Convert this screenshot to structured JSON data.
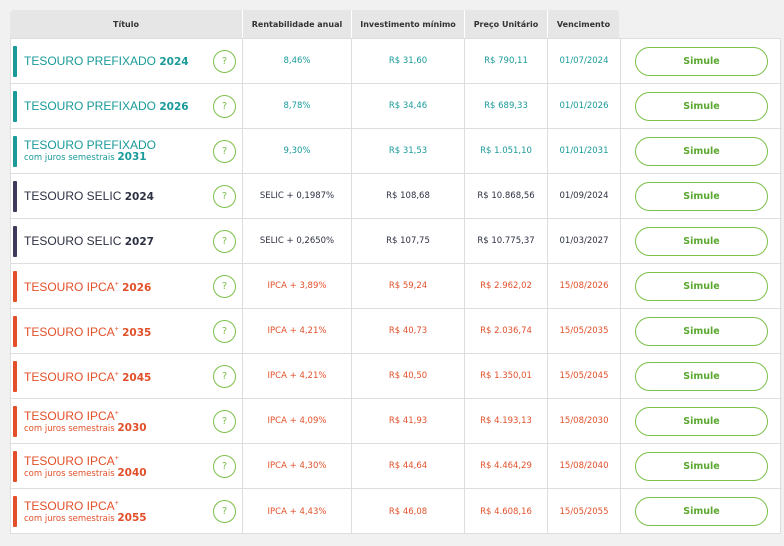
{
  "header": {
    "titulo": "Título",
    "rentabilidade": "Rentabilidade anual",
    "investimento": "Investimento mínimo",
    "preco": "Preço Unitário",
    "vencimento": "Vencimento"
  },
  "colors": {
    "prefixado": "#1a9a9a",
    "selic": "#3d3a5c",
    "ipca": "#e2502a",
    "button": "#7cc04a"
  },
  "help_symbol": "?",
  "rows": [
    {
      "name": "TESOURO PREFIXADO",
      "sub": "",
      "year": "2024",
      "group": "prefixado",
      "rent": "8,46%",
      "inv": "R$ 31,60",
      "price": "R$ 790,11",
      "venc": "01/07/2024",
      "action": "Simule"
    },
    {
      "name": "TESOURO PREFIXADO",
      "sub": "",
      "year": "2026",
      "group": "prefixado",
      "rent": "8,78%",
      "inv": "R$ 34,46",
      "price": "R$ 689,33",
      "venc": "01/01/2026",
      "action": "Simule"
    },
    {
      "name": "TESOURO PREFIXADO",
      "sub": "com juros semestrais",
      "year": "2031",
      "group": "prefixado",
      "rent": "9,30%",
      "inv": "R$ 31,53",
      "price": "R$ 1.051,10",
      "venc": "01/01/2031",
      "action": "Simule"
    },
    {
      "name": "TESOURO SELIC",
      "sub": "",
      "year": "2024",
      "group": "selic",
      "rent": "SELIC + 0,1987%",
      "inv": "R$ 108,68",
      "price": "R$ 10.868,56",
      "venc": "01/09/2024",
      "action": "Simule"
    },
    {
      "name": "TESOURO SELIC",
      "sub": "",
      "year": "2027",
      "group": "selic",
      "rent": "SELIC + 0,2650%",
      "inv": "R$ 107,75",
      "price": "R$ 10.775,37",
      "venc": "01/03/2027",
      "action": "Simule"
    },
    {
      "name": "TESOURO IPCA",
      "sub": "",
      "year": "2026",
      "group": "ipca",
      "rent": "IPCA + 3,89%",
      "inv": "R$ 59,24",
      "price": "R$ 2.962,02",
      "venc": "15/08/2026",
      "action": "Simule"
    },
    {
      "name": "TESOURO IPCA",
      "sub": "",
      "year": "2035",
      "group": "ipca",
      "rent": "IPCA + 4,21%",
      "inv": "R$ 40,73",
      "price": "R$ 2.036,74",
      "venc": "15/05/2035",
      "action": "Simule"
    },
    {
      "name": "TESOURO IPCA",
      "sub": "",
      "year": "2045",
      "group": "ipca",
      "rent": "IPCA + 4,21%",
      "inv": "R$ 40,50",
      "price": "R$ 1.350,01",
      "venc": "15/05/2045",
      "action": "Simule"
    },
    {
      "name": "TESOURO IPCA",
      "sub": "com juros semestrais",
      "year": "2030",
      "group": "ipca",
      "rent": "IPCA + 4,09%",
      "inv": "R$ 41,93",
      "price": "R$ 4.193,13",
      "venc": "15/08/2030",
      "action": "Simule"
    },
    {
      "name": "TESOURO IPCA",
      "sub": "com juros semestrais",
      "year": "2040",
      "group": "ipca",
      "rent": "IPCA + 4,30%",
      "inv": "R$ 44,64",
      "price": "R$ 4.464,29",
      "venc": "15/08/2040",
      "action": "Simule"
    },
    {
      "name": "TESOURO IPCA",
      "sub": "com juros semestrais",
      "year": "2055",
      "group": "ipca",
      "rent": "IPCA + 4,43%",
      "inv": "R$ 46,08",
      "price": "R$ 4.608,16",
      "venc": "15/05/2055",
      "action": "Simule"
    }
  ]
}
